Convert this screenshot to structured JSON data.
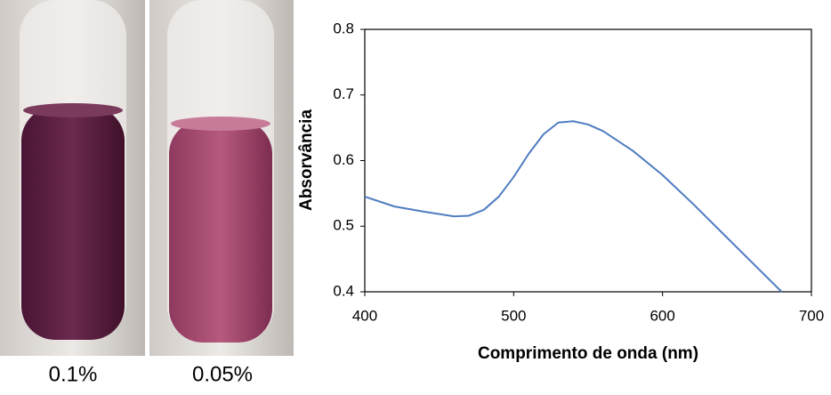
{
  "panels": [
    {
      "label": "0.1%"
    },
    {
      "label": "0.05%"
    }
  ],
  "chart_data": {
    "type": "line",
    "xlabel": "Comprimento de onda (nm)",
    "ylabel": "Absorvância",
    "x": [
      400,
      420,
      440,
      460,
      470,
      480,
      490,
      500,
      510,
      520,
      530,
      540,
      550,
      560,
      580,
      600,
      620,
      640,
      660,
      680
    ],
    "series": [
      {
        "color": "#4f7cc0",
        "values": [
          0.545,
          0.53,
          0.522,
          0.515,
          0.516,
          0.525,
          0.545,
          0.575,
          0.61,
          0.64,
          0.658,
          0.66,
          0.655,
          0.645,
          0.615,
          0.578,
          0.535,
          0.49,
          0.445,
          0.4
        ]
      }
    ],
    "xlim": [
      400,
      700
    ],
    "ylim": [
      0.4,
      0.8
    ],
    "xticks": [
      400,
      500,
      600,
      700
    ],
    "yticks": [
      0.4,
      0.5,
      0.6,
      0.7,
      0.8
    ],
    "grid": false
  }
}
